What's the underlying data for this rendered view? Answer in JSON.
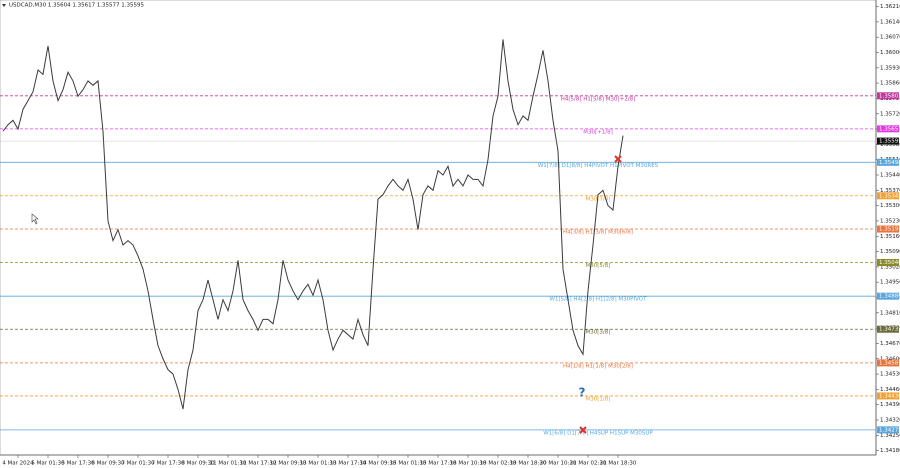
{
  "chart_data": {
    "type": "line",
    "title": "USDCAD,M30 1.35604 1.35617 1.35577 1.35595",
    "color": "#3a3a3a",
    "categories": [
      null,
      null,
      null,
      "4 Mar 2024",
      null,
      null,
      null,
      null,
      null,
      "5 Mar 01:30",
      null,
      null,
      null,
      null,
      null,
      "5 Mar 17:30",
      null,
      null,
      null,
      null,
      null,
      "6 Mar 09:30",
      null,
      null,
      null,
      null,
      null,
      "7 Mar 01:30",
      null,
      null,
      null,
      null,
      null,
      "7 Mar 17:30",
      null,
      null,
      null,
      null,
      null,
      "8 Mar 09:30",
      null,
      null,
      null,
      null,
      null,
      "11 Mar 01:30",
      null,
      null,
      null,
      null,
      null,
      "11 Mar 17:30",
      null,
      null,
      null,
      null,
      null,
      "12 Mar 09:30",
      null,
      null,
      null,
      null,
      null,
      "13 Mar 01:30",
      null,
      null,
      null,
      null,
      null,
      "13 Mar 17:30",
      null,
      null,
      null,
      null,
      null,
      "14 Mar 09:30",
      null,
      null,
      null,
      null,
      null,
      "15 Mar 01:30",
      null,
      null,
      null,
      null,
      null,
      "15 Mar 17:30",
      null,
      null,
      null,
      null,
      null,
      "18 Mar 10:30",
      null,
      null,
      null,
      null,
      null,
      "19 Mar 02:30",
      null,
      null,
      null,
      null,
      null,
      "19 Mar 18:30",
      null,
      null,
      null,
      null,
      null,
      "20 Mar 10:30",
      null,
      null,
      null,
      null,
      null,
      "21 Mar 02:30",
      null,
      null,
      null,
      null,
      null,
      "21 Mar 18:30",
      null
    ],
    "values": [
      1.3564,
      1.3567,
      1.3569,
      1.3565,
      1.3574,
      1.3578,
      1.3582,
      1.3592,
      1.359,
      1.3603,
      1.3587,
      1.3578,
      1.3583,
      1.3591,
      1.3587,
      1.358,
      1.3583,
      1.3587,
      1.3585,
      1.3587,
      1.3564,
      1.3523,
      1.3514,
      1.3519,
      1.3512,
      1.3514,
      1.3512,
      1.3507,
      1.3501,
      1.3491,
      1.3478,
      1.3466,
      1.346,
      1.3455,
      1.3453,
      1.3446,
      1.3437,
      1.3455,
      1.3464,
      1.3482,
      1.3487,
      1.3496,
      1.3487,
      1.3478,
      1.3487,
      1.3482,
      1.3491,
      1.3505,
      1.3487,
      1.3482,
      1.3478,
      1.3473,
      1.3478,
      1.3478,
      1.3476,
      1.3487,
      1.3505,
      1.3496,
      1.3491,
      1.3487,
      1.3491,
      1.3494,
      1.3489,
      1.3496,
      1.3487,
      1.3473,
      1.3464,
      1.3469,
      1.3473,
      1.3471,
      1.3469,
      1.3478,
      1.3471,
      1.3466,
      1.3501,
      1.3533,
      1.3535,
      1.3539,
      1.3542,
      1.3539,
      1.3537,
      1.3542,
      1.3533,
      1.3519,
      1.3535,
      1.3539,
      1.3537,
      1.3546,
      1.3544,
      1.3548,
      1.3539,
      1.3542,
      1.3539,
      1.3544,
      1.3542,
      1.3542,
      1.3539,
      1.3551,
      1.3571,
      1.358,
      1.3606,
      1.3587,
      1.3574,
      1.3567,
      1.3571,
      1.3569,
      1.358,
      1.359,
      1.3601,
      1.3587,
      1.3569,
      1.3555,
      1.3501,
      1.3487,
      1.3473,
      1.3466,
      1.3462,
      1.3491,
      1.3512,
      1.3535,
      1.3537,
      1.353,
      1.3528,
      1.3548,
      1.3562
    ],
    "ylim": [
      1.3416,
      1.3624
    ],
    "yticks": [
      {
        "value": 1.3418,
        "label": "1.34180"
      },
      {
        "value": 1.3425,
        "label": "1.34250"
      },
      {
        "value": 1.3432,
        "label": "1.34320"
      },
      {
        "value": 1.3439,
        "label": "1.34390"
      },
      {
        "value": 1.3446,
        "label": "1.34460"
      },
      {
        "value": 1.3453,
        "label": "1.34530"
      },
      {
        "value": 1.346,
        "label": "1.34600"
      },
      {
        "value": 1.3467,
        "label": "1.34670"
      },
      {
        "value": 1.3474,
        "label": "1.34740"
      },
      {
        "value": 1.3481,
        "label": "1.34810"
      },
      {
        "value": 1.3488,
        "label": "1.34880"
      },
      {
        "value": 1.3495,
        "label": "1.34950"
      },
      {
        "value": 1.3502,
        "label": "1.35020"
      },
      {
        "value": 1.3509,
        "label": "1.35090"
      },
      {
        "value": 1.3516,
        "label": "1.35160"
      },
      {
        "value": 1.3523,
        "label": "1.35230"
      },
      {
        "value": 1.353,
        "label": "1.35300"
      },
      {
        "value": 1.3537,
        "label": "1.35370"
      },
      {
        "value": 1.3544,
        "label": "1.35440"
      },
      {
        "value": 1.3551,
        "label": "1.35510"
      },
      {
        "value": 1.3558,
        "label": "1.35580"
      },
      {
        "value": 1.3565,
        "label": "1.35650"
      },
      {
        "value": 1.3572,
        "label": "1.35720"
      },
      {
        "value": 1.3579,
        "label": "1.35790"
      },
      {
        "value": 1.3586,
        "label": "1.35860"
      },
      {
        "value": 1.3593,
        "label": "1.35930"
      },
      {
        "value": 1.36,
        "label": "1.36000"
      },
      {
        "value": 1.3607,
        "label": "1.36070"
      },
      {
        "value": 1.3614,
        "label": "1.36140"
      },
      {
        "value": 1.3621,
        "label": "1.36210"
      }
    ],
    "levels": [
      {
        "name": "H4[5/8] H1[5/8] M30[+2/8]",
        "value": 1.35802,
        "value_label": "1.35802",
        "color": "#c2379e",
        "dash": true
      },
      {
        "name": "M30[+1/8]",
        "value": 1.35651,
        "value_label": "1.35651",
        "color": "#e03ce0",
        "dash": true
      },
      {
        "name": "W1[7/8] D1[8/8] H4PIVOT H1PIVOT M30RES",
        "value": 1.35498,
        "value_label": "1.35498",
        "color": "#5aa6dc",
        "dash": false
      },
      {
        "name": "M30[7/8]",
        "value": 1.35345,
        "value_label": "1.35345",
        "color": "#f0a030",
        "dash": true
      },
      {
        "name": "H4[3/8] H1[3/8] M30[6/8]",
        "value": 1.35193,
        "value_label": "1.35193",
        "color": "#e8743c",
        "dash": true
      },
      {
        "name": "M30[5/8]",
        "value": 1.3504,
        "value_label": "1.35040",
        "color": "#8a8a2a",
        "dash": true
      },
      {
        "name": "W1[5/8] H4[2/8] H1[2/8] M30PIVOT",
        "value": 1.34886,
        "value_label": "1.34886",
        "color": "#5aa6dc",
        "dash": false
      },
      {
        "name": "M30[3/8]",
        "value": 1.34735,
        "value_label": "1.34735",
        "color": "#6b6b3a",
        "dash": true
      },
      {
        "name": "H4[1/8] H1[1/8] M30[2/8]",
        "value": 1.34581,
        "value_label": "1.34581",
        "color": "#e8743c",
        "dash": true
      },
      {
        "name": "M30[1/8]",
        "value": 1.3443,
        "value_label": "1.34430",
        "color": "#f0a030",
        "dash": true
      },
      {
        "name": "W1[6/8] D1[7/8] H4SUP H1SUP M30SUP",
        "value": 1.34275,
        "value_label": "1.34275",
        "color": "#5aa6dc",
        "dash": false
      }
    ],
    "last_price": 1.35595
  }
}
